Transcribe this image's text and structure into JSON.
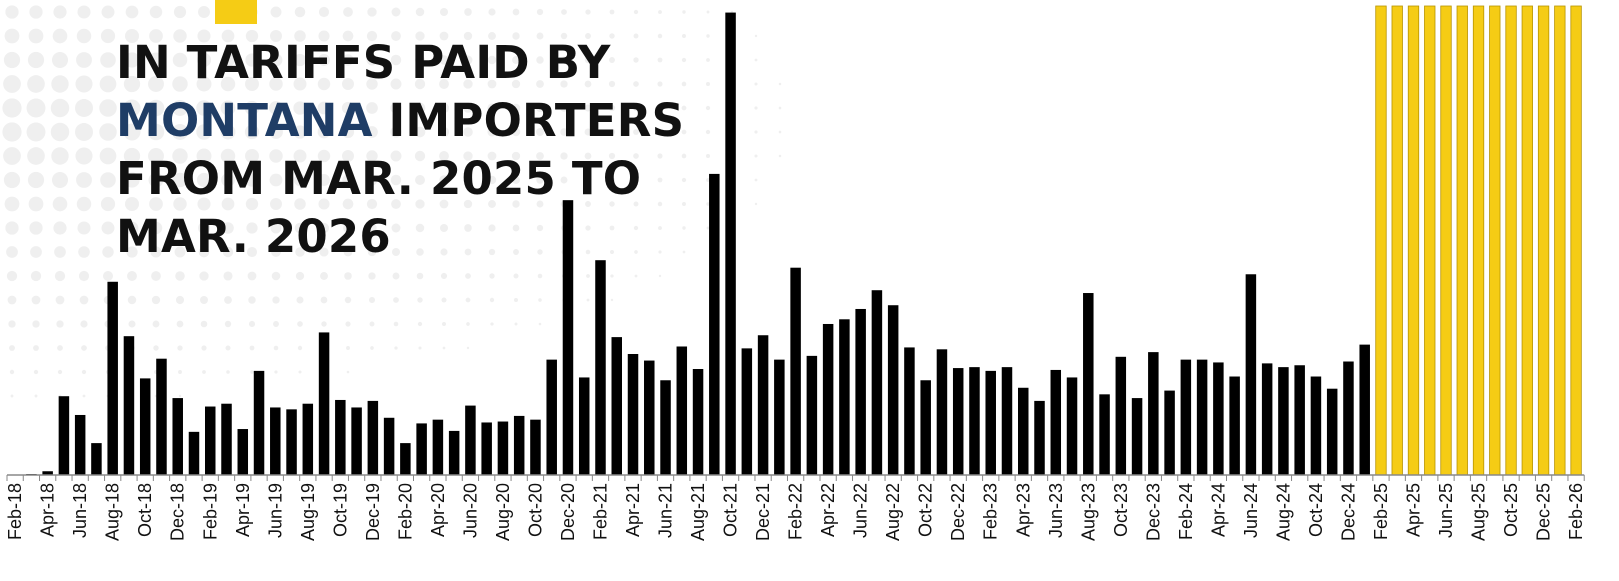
{
  "headline": {
    "line1": "IN TARIFFS PAID BY",
    "line2_highlight": "MONTANA",
    "line2_rest": " IMPORTERS",
    "line3": "FROM MAR. 2025 TO",
    "line4": "MAR. 2026"
  },
  "colors": {
    "bar": "#000000",
    "highlight_bar": "#F5CC15",
    "highlight_text": "#1F3D66",
    "accent": "#F5CC15"
  },
  "chart_data": {
    "type": "bar",
    "title": "",
    "xlabel": "",
    "ylabel": "",
    "ylim": [
      0,
      100
    ],
    "series": [
      {
        "values": [
          0,
          0.2,
          0.8,
          16.8,
          12.8,
          6.8,
          41.2,
          29.6,
          20.6,
          24.8,
          16.4,
          9.2,
          14.6,
          15.2,
          9.8,
          22.2,
          14.4,
          14,
          15.2,
          30.4,
          16,
          14.4,
          15.8,
          12.2,
          6.8,
          11,
          11.8,
          9.4,
          14.8,
          11.2,
          11.4,
          12.6,
          11.8,
          24.6,
          58.6,
          20.8,
          45.8,
          29.4,
          25.8,
          24.4,
          20.2,
          27.4,
          22.6,
          64.2,
          98.6,
          27,
          29.8,
          24.6,
          44.2,
          25.4,
          32.2,
          33.2,
          35.4,
          39.4,
          36.2,
          27.2,
          20.2,
          26.8,
          22.8,
          23,
          22.2,
          23,
          18.6,
          15.8,
          22.4,
          20.8,
          38.8,
          17.2,
          25.2,
          16.4,
          26.2,
          18,
          24.6,
          24.6,
          24,
          21,
          42.8,
          23.8,
          23,
          23.4,
          21,
          18.4,
          24.2,
          27.8
        ]
      },
      {
        "values": [
          100,
          100,
          100,
          100,
          100,
          100,
          100,
          100,
          100,
          100,
          100,
          100,
          100
        ]
      }
    ],
    "tick_labels": [
      "Feb-18",
      "Apr-18",
      "Jun-18",
      "Aug-18",
      "Oct-18",
      "Dec-18",
      "Feb-19",
      "Apr-19",
      "Jun-19",
      "Aug-19",
      "Oct-19",
      "Dec-19",
      "Feb-20",
      "Apr-20",
      "Jun-20",
      "Aug-20",
      "Oct-20",
      "Dec-20",
      "Feb-21",
      "Apr-21",
      "Jun-21",
      "Aug-21",
      "Oct-21",
      "Dec-21",
      "Feb-22",
      "Apr-22",
      "Jun-22",
      "Aug-22",
      "Oct-22",
      "Dec-22",
      "Feb-23",
      "Apr-23",
      "Jun-23",
      "Aug-23",
      "Oct-23",
      "Dec-23",
      "Feb-24",
      "Apr-24",
      "Jun-24",
      "Aug-24",
      "Oct-24",
      "Dec-24",
      "Feb-25",
      "Apr-25",
      "Jun-25",
      "Aug-25",
      "Oct-25",
      "Dec-25",
      "Feb-26"
    ]
  }
}
